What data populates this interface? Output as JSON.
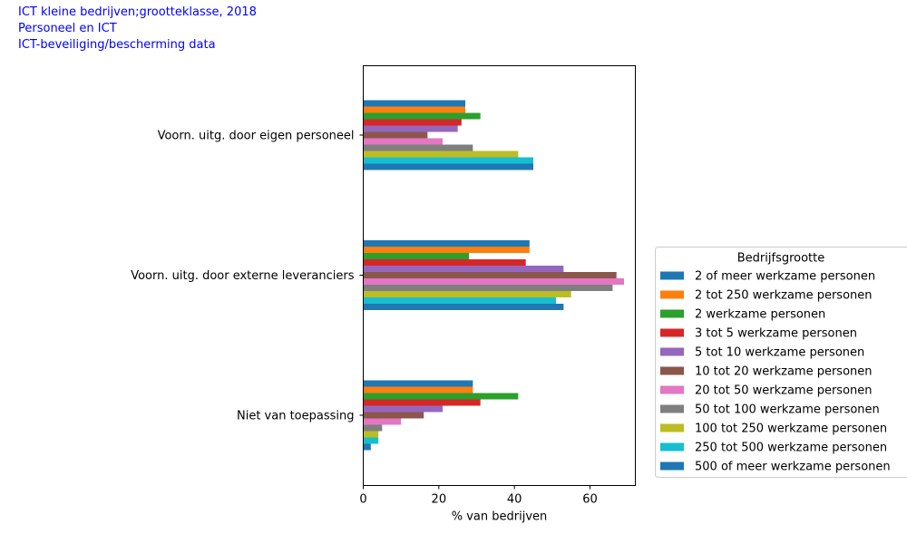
{
  "header": {
    "line1": "ICT kleine bedrijven;grootteklasse, 2018",
    "line2": "Personeel en ICT",
    "line3": "ICT-beveiliging/bescherming data"
  },
  "chart_data": {
    "type": "bar",
    "orientation": "horizontal",
    "categories": [
      "Voorn. uitg. door eigen personeel",
      "Voorn. uitg. door externe leveranciers",
      "Niet van toepassing"
    ],
    "xlabel": "% van bedrijven",
    "xlim": [
      0,
      72
    ],
    "xticks": [
      0,
      20,
      40,
      60
    ],
    "legend_title": "Bedrijfsgrootte",
    "legend_position": "right",
    "series": [
      {
        "name": "2 of meer werkzame personen",
        "color": "#1f77b4",
        "values": [
          27,
          44,
          29
        ]
      },
      {
        "name": "2 tot 250 werkzame personen",
        "color": "#ff7f0e",
        "values": [
          27,
          44,
          29
        ]
      },
      {
        "name": "2 werkzame personen",
        "color": "#2ca02c",
        "values": [
          31,
          28,
          41
        ]
      },
      {
        "name": "3 tot 5 werkzame personen",
        "color": "#d62728",
        "values": [
          26,
          43,
          31
        ]
      },
      {
        "name": "5 tot 10 werkzame personen",
        "color": "#9467bd",
        "values": [
          25,
          53,
          21
        ]
      },
      {
        "name": "10 tot 20 werkzame personen",
        "color": "#8c564b",
        "values": [
          17,
          67,
          16
        ]
      },
      {
        "name": "20 tot 50 werkzame personen",
        "color": "#e377c2",
        "values": [
          21,
          69,
          10
        ]
      },
      {
        "name": "50 tot 100 werkzame personen",
        "color": "#7f7f7f",
        "values": [
          29,
          66,
          5
        ]
      },
      {
        "name": "100 tot 250 werkzame personen",
        "color": "#bcbd22",
        "values": [
          41,
          55,
          4
        ]
      },
      {
        "name": "250 tot 500 werkzame personen",
        "color": "#17becf",
        "values": [
          45,
          51,
          4
        ]
      },
      {
        "name": "500 of meer werkzame personen",
        "color": "#1f77b4",
        "values": [
          45,
          53,
          2
        ]
      }
    ]
  }
}
